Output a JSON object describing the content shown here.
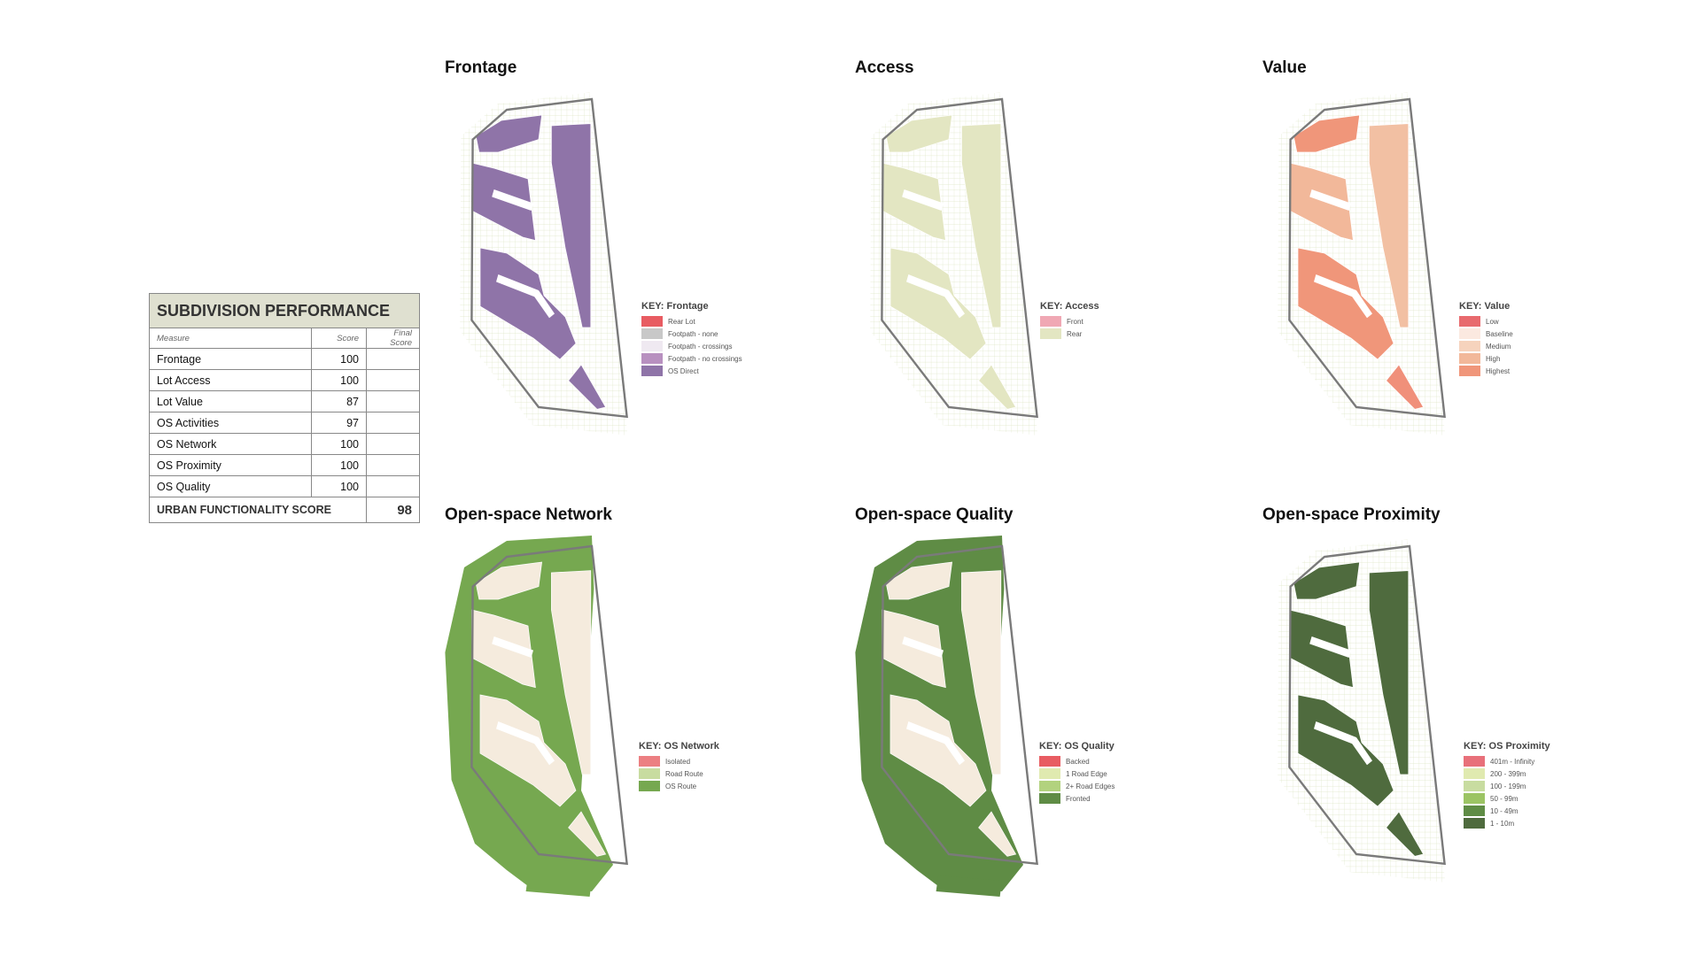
{
  "table": {
    "title": "SUBDIVISION PERFORMANCE",
    "headers": [
      "Measure",
      "Score",
      "Final Score"
    ],
    "rows": [
      {
        "measure": "Frontage",
        "score": "100"
      },
      {
        "measure": "Lot Access",
        "score": "100"
      },
      {
        "measure": "Lot Value",
        "score": "87"
      },
      {
        "measure": "OS Activities",
        "score": "97"
      },
      {
        "measure": "OS Network",
        "score": "100"
      },
      {
        "measure": "OS Proximity",
        "score": "100"
      },
      {
        "measure": "OS Quality",
        "score": "100"
      }
    ],
    "total_label": "URBAN FUNCTIONALITY SCORE",
    "total_value": "98"
  },
  "maps": [
    {
      "title": "Frontage",
      "key_title": "KEY: Frontage",
      "background": "grid",
      "lot_fills": [
        "#8f74a8",
        "#8f74a8",
        "#8f74a8",
        "#8f74a8",
        "#8f74a8"
      ],
      "legend": [
        {
          "label": "Rear Lot",
          "color": "#e85c62"
        },
        {
          "label": "Footpath - none",
          "color": "#c8c8c8"
        },
        {
          "label": "Footpath - crossings",
          "color": "#efe9f1"
        },
        {
          "label": "Footpath - no crossings",
          "color": "#b890c0"
        },
        {
          "label": "OS Direct",
          "color": "#8f74a8"
        }
      ]
    },
    {
      "title": "Access",
      "key_title": "KEY: Access",
      "background": "grid",
      "lot_fills": [
        "#e3e6c2",
        "#e3e6c2",
        "#e3e6c2",
        "#e3e6c2",
        "#e3e6c2"
      ],
      "legend": [
        {
          "label": "Front",
          "color": "#f0a8b4"
        },
        {
          "label": "Rear",
          "color": "#e3e6c2"
        }
      ]
    },
    {
      "title": "Value",
      "key_title": "KEY: Value",
      "background": "grid",
      "lot_fills": [
        "#f0967a",
        "#f2c0a3",
        "#f2b89a",
        "#f0967a",
        "#f0907a"
      ],
      "legend": [
        {
          "label": "Low",
          "color": "#e86a6e"
        },
        {
          "label": "Baseline",
          "color": "#fbe9e0"
        },
        {
          "label": "Medium",
          "color": "#f6d3bd"
        },
        {
          "label": "High",
          "color": "#f2b89a"
        },
        {
          "label": "Highest",
          "color": "#f0967a"
        }
      ]
    },
    {
      "title": "Open-space Network",
      "key_title": "KEY: OS Network",
      "background": "#76a850",
      "lot_fills": [
        "#f5ebdd",
        "#f5ebdd",
        "#f5ebdd",
        "#f5ebdd",
        "#f5ebdd"
      ],
      "legend": [
        {
          "label": "Isolated",
          "color": "#ec7f82"
        },
        {
          "label": "Road Route",
          "color": "#c8dca0"
        },
        {
          "label": "OS Route",
          "color": "#76a850"
        }
      ]
    },
    {
      "title": "Open-space Quality",
      "key_title": "KEY: OS Quality",
      "background": "#5f8c45",
      "lot_fills": [
        "#f5ebdd",
        "#f5ebdd",
        "#f5ebdd",
        "#f5ebdd",
        "#f5ebdd"
      ],
      "legend": [
        {
          "label": "Backed",
          "color": "#e85c62"
        },
        {
          "label": "1 Road Edge",
          "color": "#e0eab0"
        },
        {
          "label": "2+ Road Edges",
          "color": "#b2d27e"
        },
        {
          "label": "Fronted",
          "color": "#5f8c45"
        }
      ]
    },
    {
      "title": "Open-space Proximity",
      "key_title": "KEY: OS Proximity",
      "background": "grid",
      "lot_fills": [
        "#4f6b3e",
        "#4f6b3e",
        "#4f6b3e",
        "#4f6b3e",
        "#4f6b3e"
      ],
      "legend": [
        {
          "label": "401m - Infinity",
          "color": "#e8707a"
        },
        {
          "label": "200 - 399m",
          "color": "#e0eab0"
        },
        {
          "label": "100 - 199m",
          "color": "#c8dca0"
        },
        {
          "label": "50 - 99m",
          "color": "#9cc464"
        },
        {
          "label": "10 - 49m",
          "color": "#5f8c45"
        },
        {
          "label": "1 - 10m",
          "color": "#4f6b3e"
        }
      ]
    }
  ]
}
